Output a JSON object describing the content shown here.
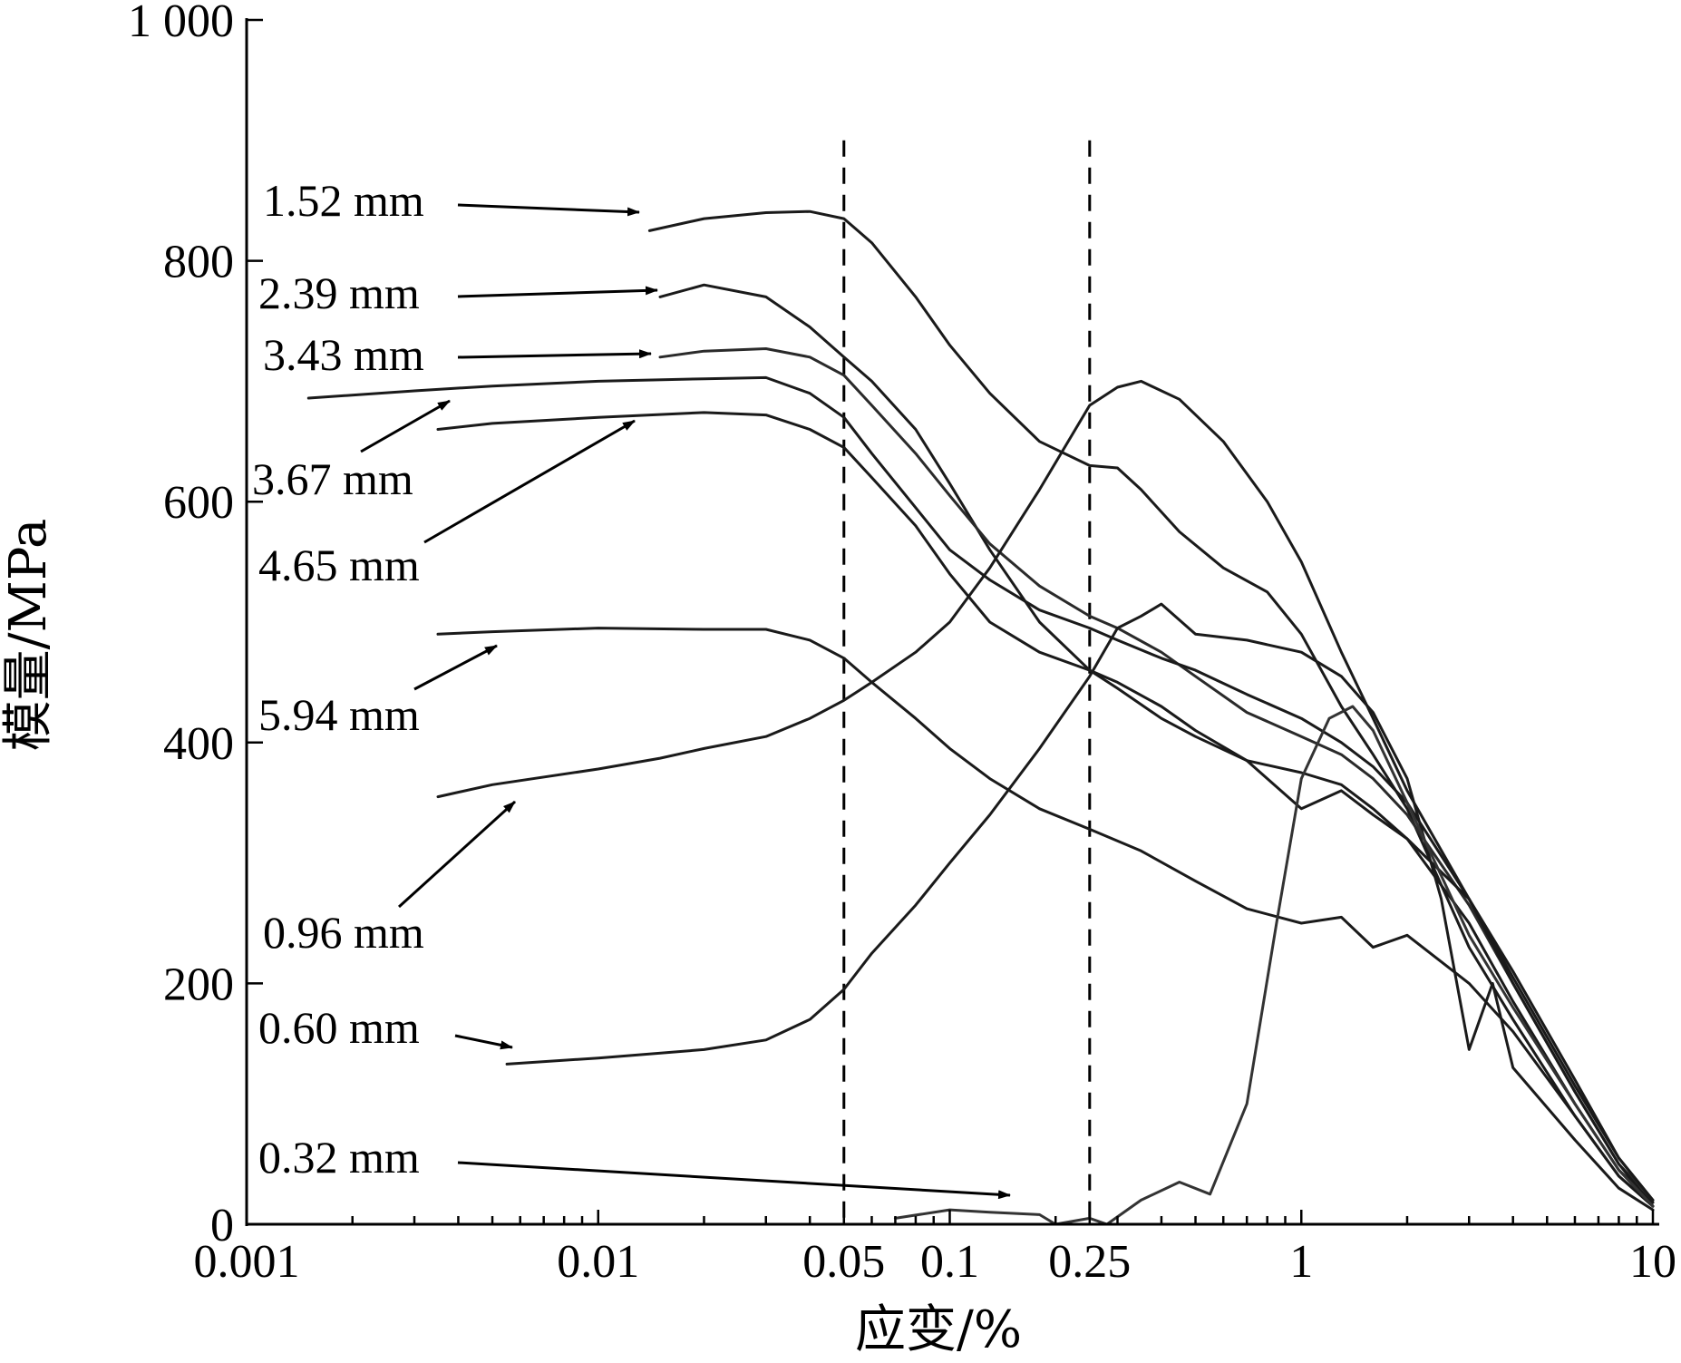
{
  "chart_data": {
    "type": "line",
    "title": "",
    "xlabel": "应变/%",
    "ylabel": "模量/MPa",
    "x_scale": "log",
    "xlim": [
      0.001,
      10
    ],
    "ylim": [
      0,
      1000
    ],
    "grid": false,
    "legend": "none",
    "x_ticks": [
      {
        "value": 0.001,
        "label": "0.001"
      },
      {
        "value": 0.01,
        "label": "0.01"
      },
      {
        "value": 0.05,
        "label": "0.05"
      },
      {
        "value": 0.1,
        "label": "0.1"
      },
      {
        "value": 0.25,
        "label": "0.25"
      },
      {
        "value": 1,
        "label": "1"
      },
      {
        "value": 10,
        "label": "10"
      }
    ],
    "y_ticks": [
      {
        "value": 0,
        "label": "0"
      },
      {
        "value": 200,
        "label": "200"
      },
      {
        "value": 400,
        "label": "400"
      },
      {
        "value": 600,
        "label": "600"
      },
      {
        "value": 800,
        "label": "800"
      },
      {
        "value": 1000,
        "label": "1 000"
      }
    ],
    "reference_lines": [
      {
        "x": 0.05,
        "style": "dashed"
      },
      {
        "x": 0.25,
        "style": "dashed"
      }
    ],
    "series": [
      {
        "name": "1.52 mm",
        "color": "#1a1a1a",
        "x": [
          0.014,
          0.02,
          0.03,
          0.04,
          0.05,
          0.06,
          0.08,
          0.1,
          0.13,
          0.18,
          0.25,
          0.3,
          0.35,
          0.45,
          0.6,
          0.8,
          1.0,
          1.3,
          1.6,
          2.0,
          3.0,
          4.0,
          6.0,
          8.0,
          10.0
        ],
        "y": [
          825,
          835,
          840,
          841,
          835,
          815,
          770,
          730,
          690,
          650,
          630,
          628,
          610,
          575,
          545,
          525,
          490,
          430,
          390,
          345,
          230,
          170,
          90,
          40,
          15
        ]
      },
      {
        "name": "2.39 mm",
        "color": "#1a1a1a",
        "x": [
          0.015,
          0.02,
          0.03,
          0.04,
          0.05,
          0.06,
          0.08,
          0.1,
          0.13,
          0.18,
          0.25,
          0.3,
          0.4,
          0.5,
          0.7,
          1.0,
          1.3,
          1.6,
          2.0,
          3.0,
          4.0,
          6.0,
          8.0,
          10.0
        ],
        "y": [
          770,
          780,
          770,
          745,
          720,
          700,
          660,
          615,
          560,
          500,
          460,
          445,
          420,
          405,
          385,
          375,
          365,
          345,
          320,
          250,
          185,
          100,
          45,
          18
        ]
      },
      {
        "name": "3.43 mm",
        "color": "#2a2a2a",
        "x": [
          0.015,
          0.02,
          0.03,
          0.04,
          0.05,
          0.06,
          0.08,
          0.1,
          0.13,
          0.18,
          0.25,
          0.3,
          0.4,
          0.5,
          0.7,
          1.0,
          1.3,
          1.6,
          2.0,
          3.0,
          4.0,
          6.0,
          8.0,
          10.0
        ],
        "y": [
          720,
          725,
          727,
          720,
          705,
          680,
          640,
          605,
          565,
          530,
          505,
          495,
          475,
          455,
          425,
          405,
          390,
          370,
          340,
          265,
          200,
          110,
          50,
          20
        ]
      },
      {
        "name": "3.67 mm",
        "color": "#1a1a1a",
        "x": [
          0.0015,
          0.003,
          0.005,
          0.01,
          0.02,
          0.03,
          0.04,
          0.05,
          0.06,
          0.08,
          0.1,
          0.13,
          0.18,
          0.25,
          0.3,
          0.4,
          0.5,
          0.7,
          1.0,
          1.3,
          1.6,
          2.0,
          3.0,
          4.0,
          6.0,
          8.0,
          10.0
        ],
        "y": [
          686,
          692,
          696,
          700,
          702,
          703,
          690,
          670,
          640,
          595,
          560,
          535,
          510,
          495,
          485,
          470,
          460,
          440,
          420,
          400,
          380,
          350,
          270,
          205,
          115,
          55,
          20
        ]
      },
      {
        "name": "4.65 mm",
        "color": "#1a1a1a",
        "x": [
          0.0035,
          0.005,
          0.01,
          0.02,
          0.03,
          0.04,
          0.05,
          0.06,
          0.08,
          0.1,
          0.13,
          0.18,
          0.25,
          0.3,
          0.4,
          0.5,
          0.7,
          1.0,
          1.3,
          1.6,
          2.0,
          3.0,
          4.0,
          6.0,
          8.0,
          10.0
        ],
        "y": [
          660,
          665,
          670,
          674,
          672,
          660,
          645,
          620,
          580,
          540,
          500,
          475,
          460,
          450,
          430,
          410,
          385,
          345,
          360,
          340,
          320,
          270,
          210,
          120,
          55,
          20
        ]
      },
      {
        "name": "5.94 mm",
        "color": "#1a1a1a",
        "x": [
          0.0035,
          0.005,
          0.01,
          0.02,
          0.03,
          0.04,
          0.05,
          0.06,
          0.08,
          0.1,
          0.13,
          0.18,
          0.25,
          0.35,
          0.5,
          0.7,
          1.0,
          1.3,
          1.6,
          2.0,
          3.0,
          4.0,
          6.0,
          8.0,
          10.0
        ],
        "y": [
          490,
          492,
          495,
          494,
          494,
          485,
          470,
          450,
          420,
          395,
          370,
          345,
          328,
          310,
          285,
          262,
          250,
          255,
          230,
          240,
          200,
          160,
          90,
          40,
          15
        ]
      },
      {
        "name": "0.96 mm",
        "color": "#1a1a1a",
        "x": [
          0.0035,
          0.005,
          0.01,
          0.015,
          0.02,
          0.03,
          0.04,
          0.05,
          0.06,
          0.08,
          0.1,
          0.13,
          0.18,
          0.25,
          0.3,
          0.35,
          0.45,
          0.6,
          0.8,
          1.0,
          1.3,
          1.6,
          2.0,
          3.0,
          4.0,
          6.0,
          8.0,
          10.0
        ],
        "y": [
          355,
          365,
          378,
          387,
          395,
          405,
          420,
          435,
          450,
          475,
          500,
          545,
          610,
          680,
          695,
          700,
          685,
          650,
          600,
          550,
          475,
          420,
          360,
          270,
          200,
          110,
          50,
          15
        ]
      },
      {
        "name": "0.60 mm",
        "color": "#1a1a1a",
        "x": [
          0.0055,
          0.01,
          0.02,
          0.03,
          0.04,
          0.05,
          0.06,
          0.08,
          0.1,
          0.13,
          0.18,
          0.25,
          0.3,
          0.35,
          0.4,
          0.5,
          0.7,
          1.0,
          1.3,
          1.6,
          2.0,
          2.5,
          3.0,
          3.5,
          4.0,
          6.0,
          8.0,
          10.0
        ],
        "y": [
          133,
          138,
          145,
          153,
          170,
          195,
          225,
          265,
          300,
          340,
          395,
          455,
          495,
          505,
          515,
          490,
          485,
          475,
          455,
          425,
          370,
          270,
          145,
          200,
          130,
          70,
          30,
          12
        ]
      },
      {
        "name": "0.32 mm",
        "color": "#333333",
        "x": [
          0.07,
          0.1,
          0.13,
          0.18,
          0.2,
          0.25,
          0.28,
          0.35,
          0.45,
          0.55,
          0.7,
          0.85,
          1.0,
          1.2,
          1.4,
          1.6,
          2.0,
          3.0,
          4.0,
          6.0,
          8.0,
          10.0
        ],
        "y": [
          5,
          12,
          10,
          8,
          0,
          5,
          0,
          20,
          35,
          25,
          100,
          250,
          370,
          420,
          430,
          410,
          350,
          240,
          180,
          100,
          45,
          15
        ]
      }
    ],
    "annotations": [
      {
        "text": "1.52 mm",
        "target": "1.52 mm"
      },
      {
        "text": "2.39 mm",
        "target": "2.39 mm"
      },
      {
        "text": "3.43 mm",
        "target": "3.43 mm"
      },
      {
        "text": "3.67 mm",
        "target": "3.67 mm"
      },
      {
        "text": "4.65 mm",
        "target": "4.65 mm"
      },
      {
        "text": "5.94 mm",
        "target": "5.94 mm"
      },
      {
        "text": "0.96 mm",
        "target": "0.96 mm"
      },
      {
        "text": "0.60 mm",
        "target": "0.60 mm"
      },
      {
        "text": "0.32 mm",
        "target": "0.32 mm"
      }
    ]
  }
}
